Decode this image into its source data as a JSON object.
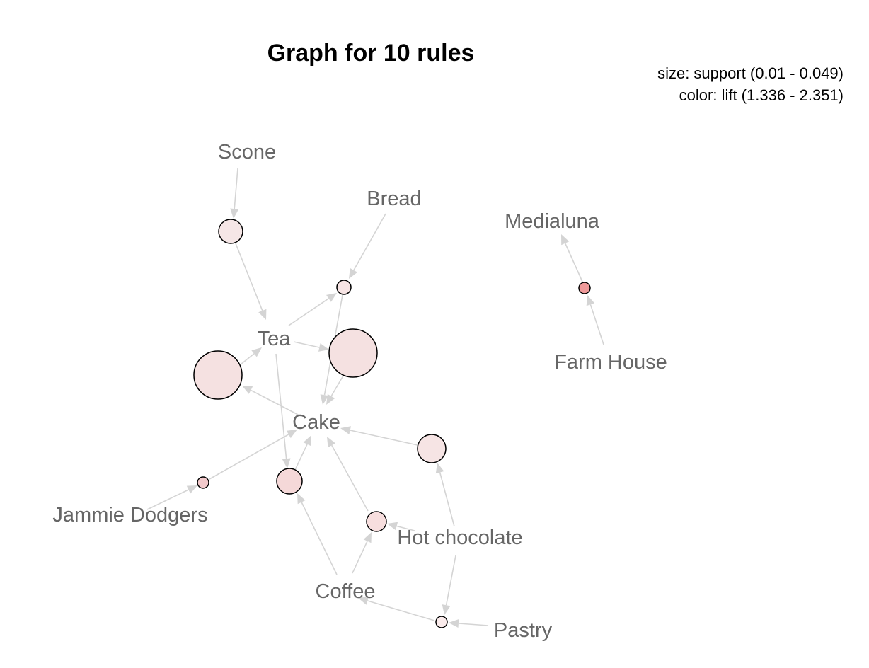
{
  "title": "Graph for 10 rules",
  "legend": {
    "size_text": "size: support (0.01 - 0.049)",
    "color_text": "color: lift (1.336 - 2.351)"
  },
  "colors": {
    "label": "#666666",
    "edge": "#d4d4d4",
    "node_stroke": "#000000"
  },
  "items": {
    "scone": "Scone",
    "bread": "Bread",
    "medialuna": "Medialuna",
    "tea": "Tea",
    "farm_house": "Farm House",
    "cake": "Cake",
    "jammie_dodgers": "Jammie Dodgers",
    "hot_chocolate": "Hot chocolate",
    "coffee": "Coffee",
    "pastry": "Pastry"
  },
  "rules": [
    {
      "id": "scone-tea",
      "lhs": [
        "Scone"
      ],
      "rhs": "Tea",
      "color": "#f5e6e6"
    },
    {
      "id": "tea-bread-cake",
      "lhs": [
        "Tea",
        "Bread"
      ],
      "rhs": "Cake",
      "color": "#f7e4e4"
    },
    {
      "id": "farmhouse-medialuna",
      "lhs": [
        "Farm House"
      ],
      "rhs": "Medialuna",
      "color": "#ef9a9a"
    },
    {
      "id": "tea-cake",
      "lhs": [
        "Tea"
      ],
      "rhs": "Cake",
      "color": "#f5e1e1"
    },
    {
      "id": "cake-tea",
      "lhs": [
        "Cake"
      ],
      "rhs": "Tea",
      "color": "#f5e1e1"
    },
    {
      "id": "hotchoc-cake",
      "lhs": [
        "Hot chocolate"
      ],
      "rhs": "Cake",
      "color": "#f6e4e4"
    },
    {
      "id": "jammie-cake",
      "lhs": [
        "Jammie Dodgers"
      ],
      "rhs": "Cake",
      "color": "#f2c9cb"
    },
    {
      "id": "coffee-tea-cake",
      "lhs": [
        "Coffee",
        "Tea"
      ],
      "rhs": "Cake",
      "color": "#f5d8d8"
    },
    {
      "id": "coffee-hotchoc-cake",
      "lhs": [
        "Coffee",
        "Hot chocolate"
      ],
      "rhs": "Cake",
      "color": "#f7dede"
    },
    {
      "id": "hotchoc-pastry-coffee",
      "lhs": [
        "Hot chocolate",
        "Pastry"
      ],
      "rhs": "Coffee",
      "color": "#fbecec"
    }
  ]
}
